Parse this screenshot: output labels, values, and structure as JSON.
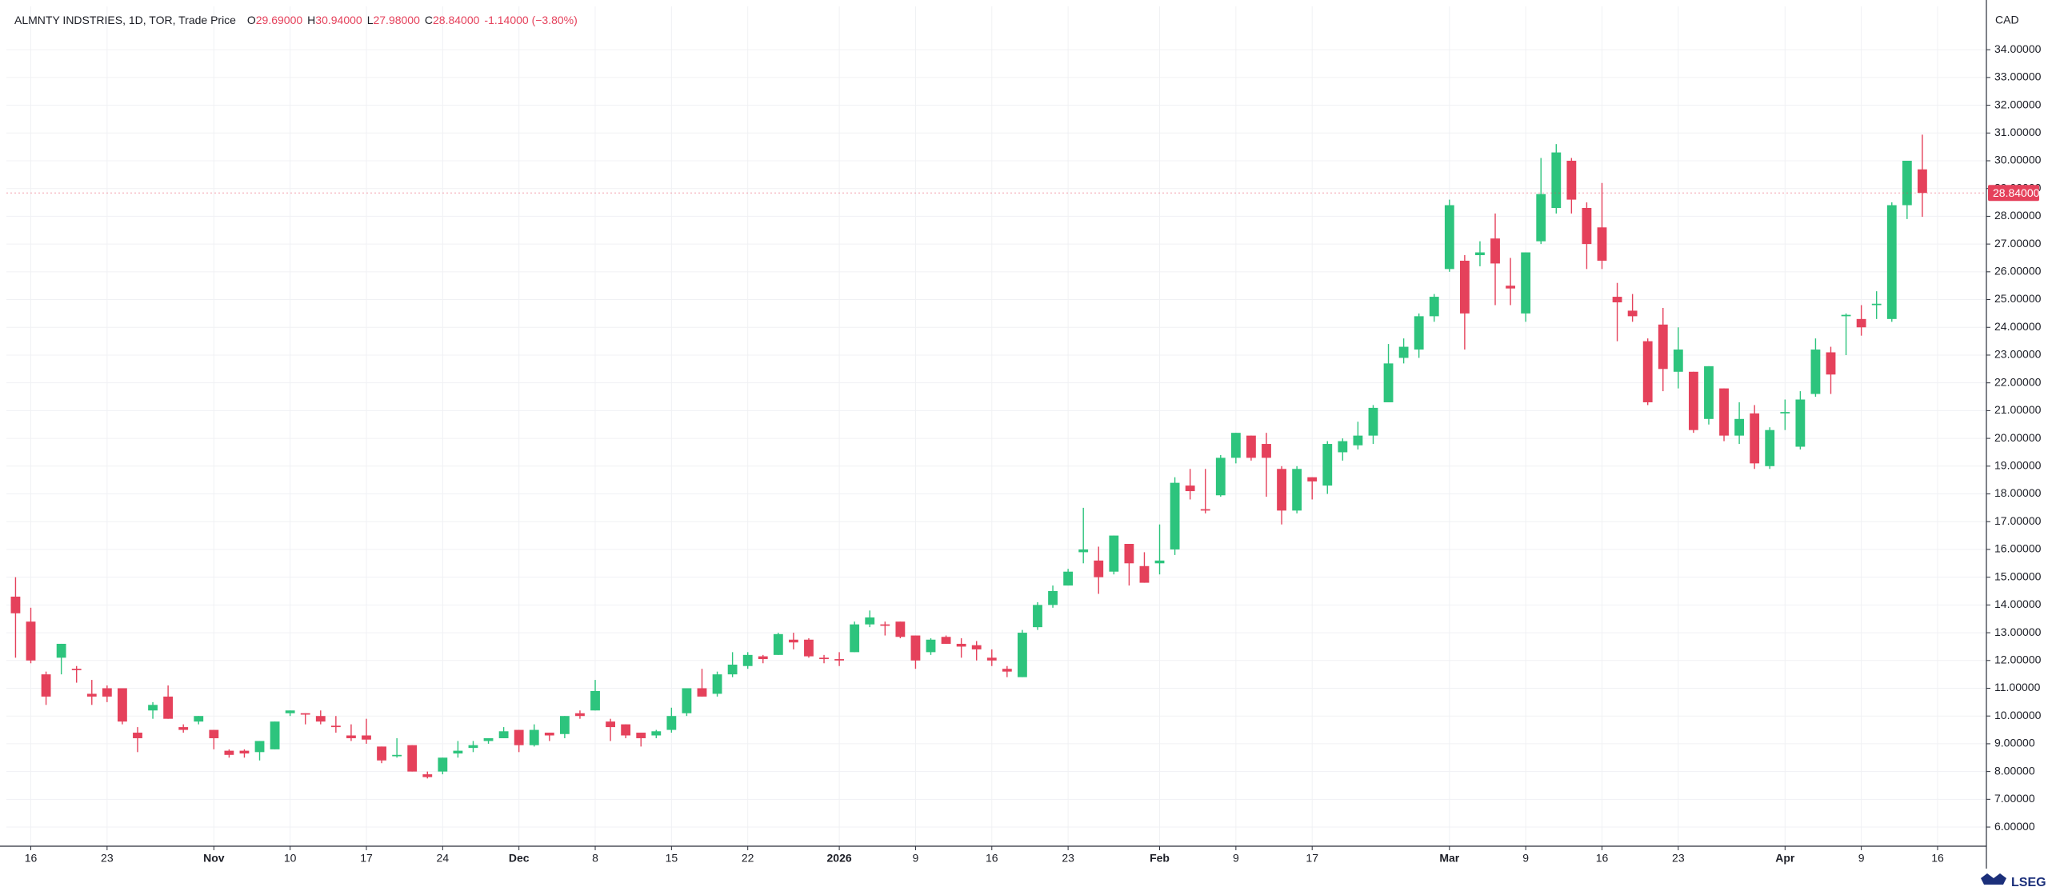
{
  "legend": {
    "symbol": "ALMNTY INDSTRIES, 1D, TOR, Trade Price",
    "items": [
      {
        "key": "O",
        "value": "29.69000"
      },
      {
        "key": "H",
        "value": "30.94000"
      },
      {
        "key": "L",
        "value": "27.98000"
      },
      {
        "key": "C",
        "value": "28.84000"
      }
    ],
    "change": "-1.14000 (−3.80%)"
  },
  "currency": "CAD",
  "brand": "LSEG",
  "chart_data": {
    "type": "candlestick",
    "up_color": "#2dc47d",
    "down_color": "#e5415b",
    "grid": true,
    "xlim": [
      -0.6,
      129.2
    ],
    "ylim": [
      5.31,
      35.56
    ],
    "xticks": [
      {
        "value": 1,
        "label": "16"
      },
      {
        "value": 6,
        "label": "23"
      },
      {
        "value": 13,
        "label": "Nov"
      },
      {
        "value": 18,
        "label": "10"
      },
      {
        "value": 23,
        "label": "17"
      },
      {
        "value": 28,
        "label": "24"
      },
      {
        "value": 33,
        "label": "Dec"
      },
      {
        "value": 38,
        "label": "8"
      },
      {
        "value": 43,
        "label": "15"
      },
      {
        "value": 48,
        "label": "22"
      },
      {
        "value": 54,
        "label": "2026"
      },
      {
        "value": 59,
        "label": "9"
      },
      {
        "value": 64,
        "label": "16"
      },
      {
        "value": 69,
        "label": "23"
      },
      {
        "value": 75,
        "label": "Feb"
      },
      {
        "value": 80,
        "label": "9"
      },
      {
        "value": 85,
        "label": "17"
      },
      {
        "value": 94,
        "label": "Mar"
      },
      {
        "value": 99,
        "label": "9"
      },
      {
        "value": 104,
        "label": "16"
      },
      {
        "value": 109,
        "label": "23"
      },
      {
        "value": 116,
        "label": "Apr"
      },
      {
        "value": 121,
        "label": "9"
      },
      {
        "value": 126,
        "label": "16"
      }
    ],
    "yticks": [
      {
        "value": 6,
        "label": "6.00000"
      },
      {
        "value": 7,
        "label": "7.00000"
      },
      {
        "value": 8,
        "label": "8.00000"
      },
      {
        "value": 9,
        "label": "9.00000"
      },
      {
        "value": 10,
        "label": "10.00000"
      },
      {
        "value": 11,
        "label": "11.00000"
      },
      {
        "value": 12,
        "label": "12.00000"
      },
      {
        "value": 13,
        "label": "13.00000"
      },
      {
        "value": 14,
        "label": "14.00000"
      },
      {
        "value": 15,
        "label": "15.00000"
      },
      {
        "value": 16,
        "label": "16.00000"
      },
      {
        "value": 17,
        "label": "17.00000"
      },
      {
        "value": 18,
        "label": "18.00000"
      },
      {
        "value": 19,
        "label": "19.00000"
      },
      {
        "value": 20,
        "label": "20.00000"
      },
      {
        "value": 21,
        "label": "21.00000"
      },
      {
        "value": 22,
        "label": "22.00000"
      },
      {
        "value": 23,
        "label": "23.00000"
      },
      {
        "value": 24,
        "label": "24.00000"
      },
      {
        "value": 25,
        "label": "25.00000"
      },
      {
        "value": 26,
        "label": "26.00000"
      },
      {
        "value": 27,
        "label": "27.00000"
      },
      {
        "value": 28,
        "label": "28.00000"
      },
      {
        "value": 29,
        "label": "29.00000"
      },
      {
        "value": 30,
        "label": "30.00000"
      },
      {
        "value": 31,
        "label": "31.00000"
      },
      {
        "value": 32,
        "label": "32.00000"
      },
      {
        "value": 33,
        "label": "33.00000"
      },
      {
        "value": 34,
        "label": "34.00000"
      }
    ],
    "last_price": {
      "value": 28.84,
      "label": "28.84000"
    },
    "open": [
      14.3,
      13.4,
      11.5,
      12.1,
      11.7,
      10.8,
      11.0,
      11.0,
      9.4,
      10.2,
      10.7,
      9.6,
      9.8,
      9.5,
      8.75,
      8.75,
      8.7,
      8.8,
      10.1,
      10.1,
      10.0,
      9.65,
      9.3,
      9.3,
      8.9,
      8.55,
      8.95,
      7.9,
      8.0,
      8.65,
      8.85,
      9.1,
      9.2,
      9.5,
      8.95,
      9.4,
      9.35,
      10.1,
      10.2,
      9.8,
      9.7,
      9.4,
      9.3,
      9.5,
      10.1,
      11.0,
      10.8,
      11.5,
      11.8,
      12.15,
      12.2,
      12.75,
      12.75,
      12.1,
      12.05,
      12.3,
      13.3,
      13.3,
      13.4,
      12.9,
      12.3,
      12.85,
      12.6,
      12.55,
      12.1,
      11.7,
      11.4,
      13.2,
      14.0,
      14.7,
      15.9,
      15.6,
      15.2,
      16.2,
      15.4,
      15.5,
      16.0,
      18.3,
      17.45,
      17.95,
      19.3,
      20.1,
      19.8,
      18.9,
      17.4,
      18.6,
      18.3,
      19.5,
      19.75,
      20.1,
      21.3,
      22.9,
      23.2,
      24.4,
      26.1,
      26.4,
      26.6,
      27.2,
      25.5,
      24.5,
      27.1,
      28.3,
      30.0,
      28.3,
      27.6,
      25.1,
      24.6,
      23.5,
      24.1,
      22.4,
      22.4,
      20.7,
      21.8,
      20.1,
      20.9,
      19.0,
      20.9,
      19.7,
      21.6,
      23.1,
      24.4,
      24.3,
      24.8,
      24.3,
      28.4,
      29.69
    ],
    "high": [
      15.0,
      13.9,
      11.6,
      12.6,
      11.8,
      11.3,
      11.1,
      11.0,
      9.6,
      10.5,
      11.1,
      9.7,
      10.0,
      9.5,
      8.8,
      8.8,
      9.1,
      9.8,
      10.2,
      10.1,
      10.2,
      10.0,
      9.7,
      9.9,
      8.9,
      9.2,
      8.95,
      8.0,
      8.5,
      9.1,
      9.1,
      9.2,
      9.6,
      9.5,
      9.7,
      9.4,
      10.0,
      10.2,
      11.3,
      9.9,
      9.7,
      9.4,
      9.5,
      10.3,
      11.0,
      11.7,
      11.6,
      12.3,
      12.3,
      12.2,
      13.0,
      13.0,
      12.8,
      12.2,
      12.3,
      13.4,
      13.8,
      13.4,
      13.4,
      12.9,
      12.8,
      12.9,
      12.8,
      12.7,
      12.4,
      11.8,
      13.1,
      14.1,
      14.7,
      15.3,
      17.5,
      16.1,
      16.5,
      16.2,
      15.9,
      16.9,
      18.6,
      18.9,
      18.9,
      19.4,
      20.2,
      20.1,
      20.2,
      19.0,
      19.0,
      18.6,
      19.9,
      20.0,
      20.6,
      21.2,
      23.4,
      23.6,
      24.5,
      25.2,
      28.6,
      26.6,
      27.1,
      28.1,
      26.5,
      26.7,
      30.1,
      30.6,
      30.1,
      28.5,
      29.2,
      25.6,
      25.2,
      23.6,
      24.7,
      24.0,
      22.4,
      22.6,
      21.8,
      21.3,
      21.2,
      20.4,
      21.4,
      21.7,
      23.6,
      23.3,
      24.5,
      24.8,
      25.3,
      28.5,
      30.0,
      30.94
    ],
    "low": [
      12.1,
      11.9,
      10.4,
      11.5,
      11.2,
      10.4,
      10.5,
      9.7,
      8.7,
      9.9,
      9.9,
      9.4,
      9.7,
      8.8,
      8.5,
      8.5,
      8.4,
      8.8,
      10.0,
      9.7,
      9.7,
      9.4,
      9.1,
      9.0,
      8.3,
      8.5,
      8.0,
      7.75,
      7.9,
      8.5,
      8.7,
      9.0,
      9.2,
      8.7,
      8.9,
      9.1,
      9.2,
      9.9,
      10.2,
      9.1,
      9.2,
      8.9,
      9.2,
      9.4,
      10.0,
      10.7,
      10.7,
      11.4,
      11.7,
      11.9,
      12.2,
      12.4,
      12.1,
      11.9,
      11.8,
      12.3,
      13.2,
      12.9,
      12.8,
      11.7,
      12.2,
      12.6,
      12.1,
      12.0,
      11.8,
      11.4,
      11.4,
      13.1,
      13.9,
      14.7,
      15.5,
      14.4,
      15.1,
      14.7,
      14.8,
      15.1,
      15.8,
      17.8,
      17.3,
      17.9,
      19.1,
      19.2,
      17.9,
      16.9,
      17.3,
      17.8,
      18.0,
      19.2,
      19.6,
      19.8,
      21.3,
      22.7,
      22.9,
      24.2,
      26.0,
      23.2,
      26.2,
      24.8,
      24.8,
      24.2,
      27.0,
      28.1,
      28.1,
      26.1,
      26.1,
      23.5,
      24.2,
      21.2,
      21.7,
      21.8,
      20.2,
      20.5,
      19.9,
      19.8,
      18.9,
      18.9,
      20.3,
      19.6,
      21.5,
      21.6,
      23.0,
      23.7,
      24.3,
      24.2,
      27.9,
      27.98
    ],
    "close": [
      13.7,
      12.0,
      10.7,
      12.6,
      11.65,
      10.7,
      10.7,
      9.8,
      9.2,
      10.4,
      9.9,
      9.5,
      10.0,
      9.2,
      8.6,
      8.65,
      9.1,
      9.8,
      10.2,
      10.05,
      9.8,
      9.6,
      9.2,
      9.15,
      8.4,
      8.6,
      8.0,
      7.8,
      8.5,
      8.75,
      8.95,
      9.2,
      9.45,
      8.95,
      9.5,
      9.3,
      10.0,
      10.0,
      10.9,
      9.6,
      9.3,
      9.2,
      9.45,
      10.0,
      11.0,
      10.7,
      11.5,
      11.85,
      12.2,
      12.05,
      12.95,
      12.65,
      12.15,
      12.05,
      12.0,
      13.3,
      13.55,
      13.25,
      12.85,
      12.0,
      12.75,
      12.6,
      12.5,
      12.4,
      12.0,
      11.6,
      13.0,
      14.0,
      14.5,
      15.2,
      16.0,
      15.0,
      16.5,
      15.5,
      14.8,
      15.6,
      18.4,
      18.1,
      17.4,
      19.3,
      20.2,
      19.3,
      19.3,
      17.4,
      18.9,
      18.45,
      19.8,
      19.9,
      20.1,
      21.1,
      22.7,
      23.3,
      24.4,
      25.1,
      28.4,
      24.5,
      26.7,
      26.3,
      25.4,
      26.7,
      28.8,
      30.3,
      28.6,
      27.0,
      26.4,
      24.9,
      24.4,
      21.3,
      22.5,
      23.2,
      20.3,
      22.6,
      20.1,
      20.7,
      19.1,
      20.3,
      20.95,
      21.4,
      23.2,
      22.3,
      24.45,
      24.0,
      24.85,
      28.4,
      30.0,
      28.84
    ]
  }
}
